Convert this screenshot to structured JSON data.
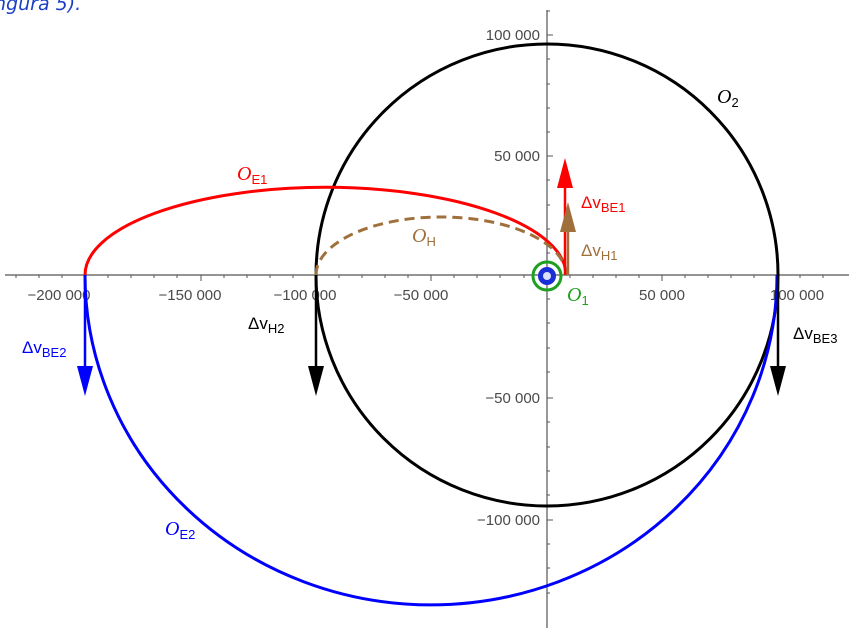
{
  "caption": "ngura 5).",
  "axes": {
    "x_ticks": [
      "−200 000",
      "−150 000",
      "−100 000",
      "−50 000",
      "50 000",
      "100 000"
    ],
    "y_ticks": [
      "100 000",
      "50 000",
      "−50 000",
      "−100 000"
    ]
  },
  "labels": {
    "o2": {
      "main": "O",
      "sub": "2"
    },
    "oe1": {
      "main": "O",
      "sub": "E1"
    },
    "oh": {
      "main": "O",
      "sub": "H"
    },
    "o1": {
      "main": "O",
      "sub": "1"
    },
    "oe2": {
      "main": "O",
      "sub": "E2"
    },
    "dv_be1": {
      "main": "Δv",
      "sub": "BE1"
    },
    "dv_h1": {
      "main": "Δv",
      "sub": "H1"
    },
    "dv_h2": {
      "main": "Δv",
      "sub": "H2"
    },
    "dv_be2": {
      "main": "Δv",
      "sub": "BE2"
    },
    "dv_be3": {
      "main": "Δv",
      "sub": "BE3"
    }
  },
  "colors": {
    "o2": "#000000",
    "oe1": "#ff0000",
    "oh": "#a0703c",
    "o1": "#1fa020",
    "oe2": "#0000ff",
    "earth": "#1a2fd6",
    "axis": "#555555"
  }
}
